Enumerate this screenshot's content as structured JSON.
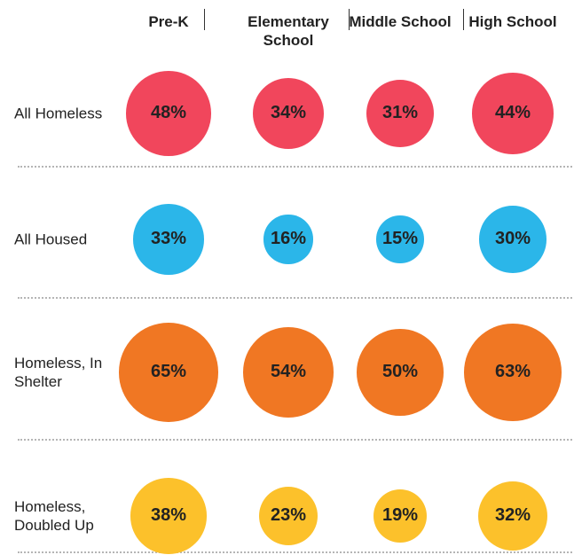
{
  "chart_data": {
    "type": "bubble",
    "categories": [
      "Pre-K",
      "Elementary School",
      "Middle School",
      "High School"
    ],
    "series": [
      {
        "name": "All Homeless",
        "color": "#f1465c",
        "values": [
          48,
          34,
          31,
          44
        ],
        "value_labels": [
          "48%",
          "34%",
          "31%",
          "44%"
        ]
      },
      {
        "name": "All Housed",
        "color": "#2bb6e9",
        "values": [
          33,
          16,
          15,
          30
        ],
        "value_labels": [
          "33%",
          "16%",
          "15%",
          "30%"
        ]
      },
      {
        "name": "Homeless, In Shelter",
        "color": "#f07723",
        "values": [
          65,
          54,
          50,
          63
        ],
        "value_labels": [
          "65%",
          "54%",
          "50%",
          "63%"
        ]
      },
      {
        "name": "Homeless, Doubled Up",
        "color": "#fcc12b",
        "values": [
          38,
          23,
          19,
          32
        ],
        "value_labels": [
          "38%",
          "23%",
          "19%",
          "32%"
        ]
      }
    ]
  }
}
